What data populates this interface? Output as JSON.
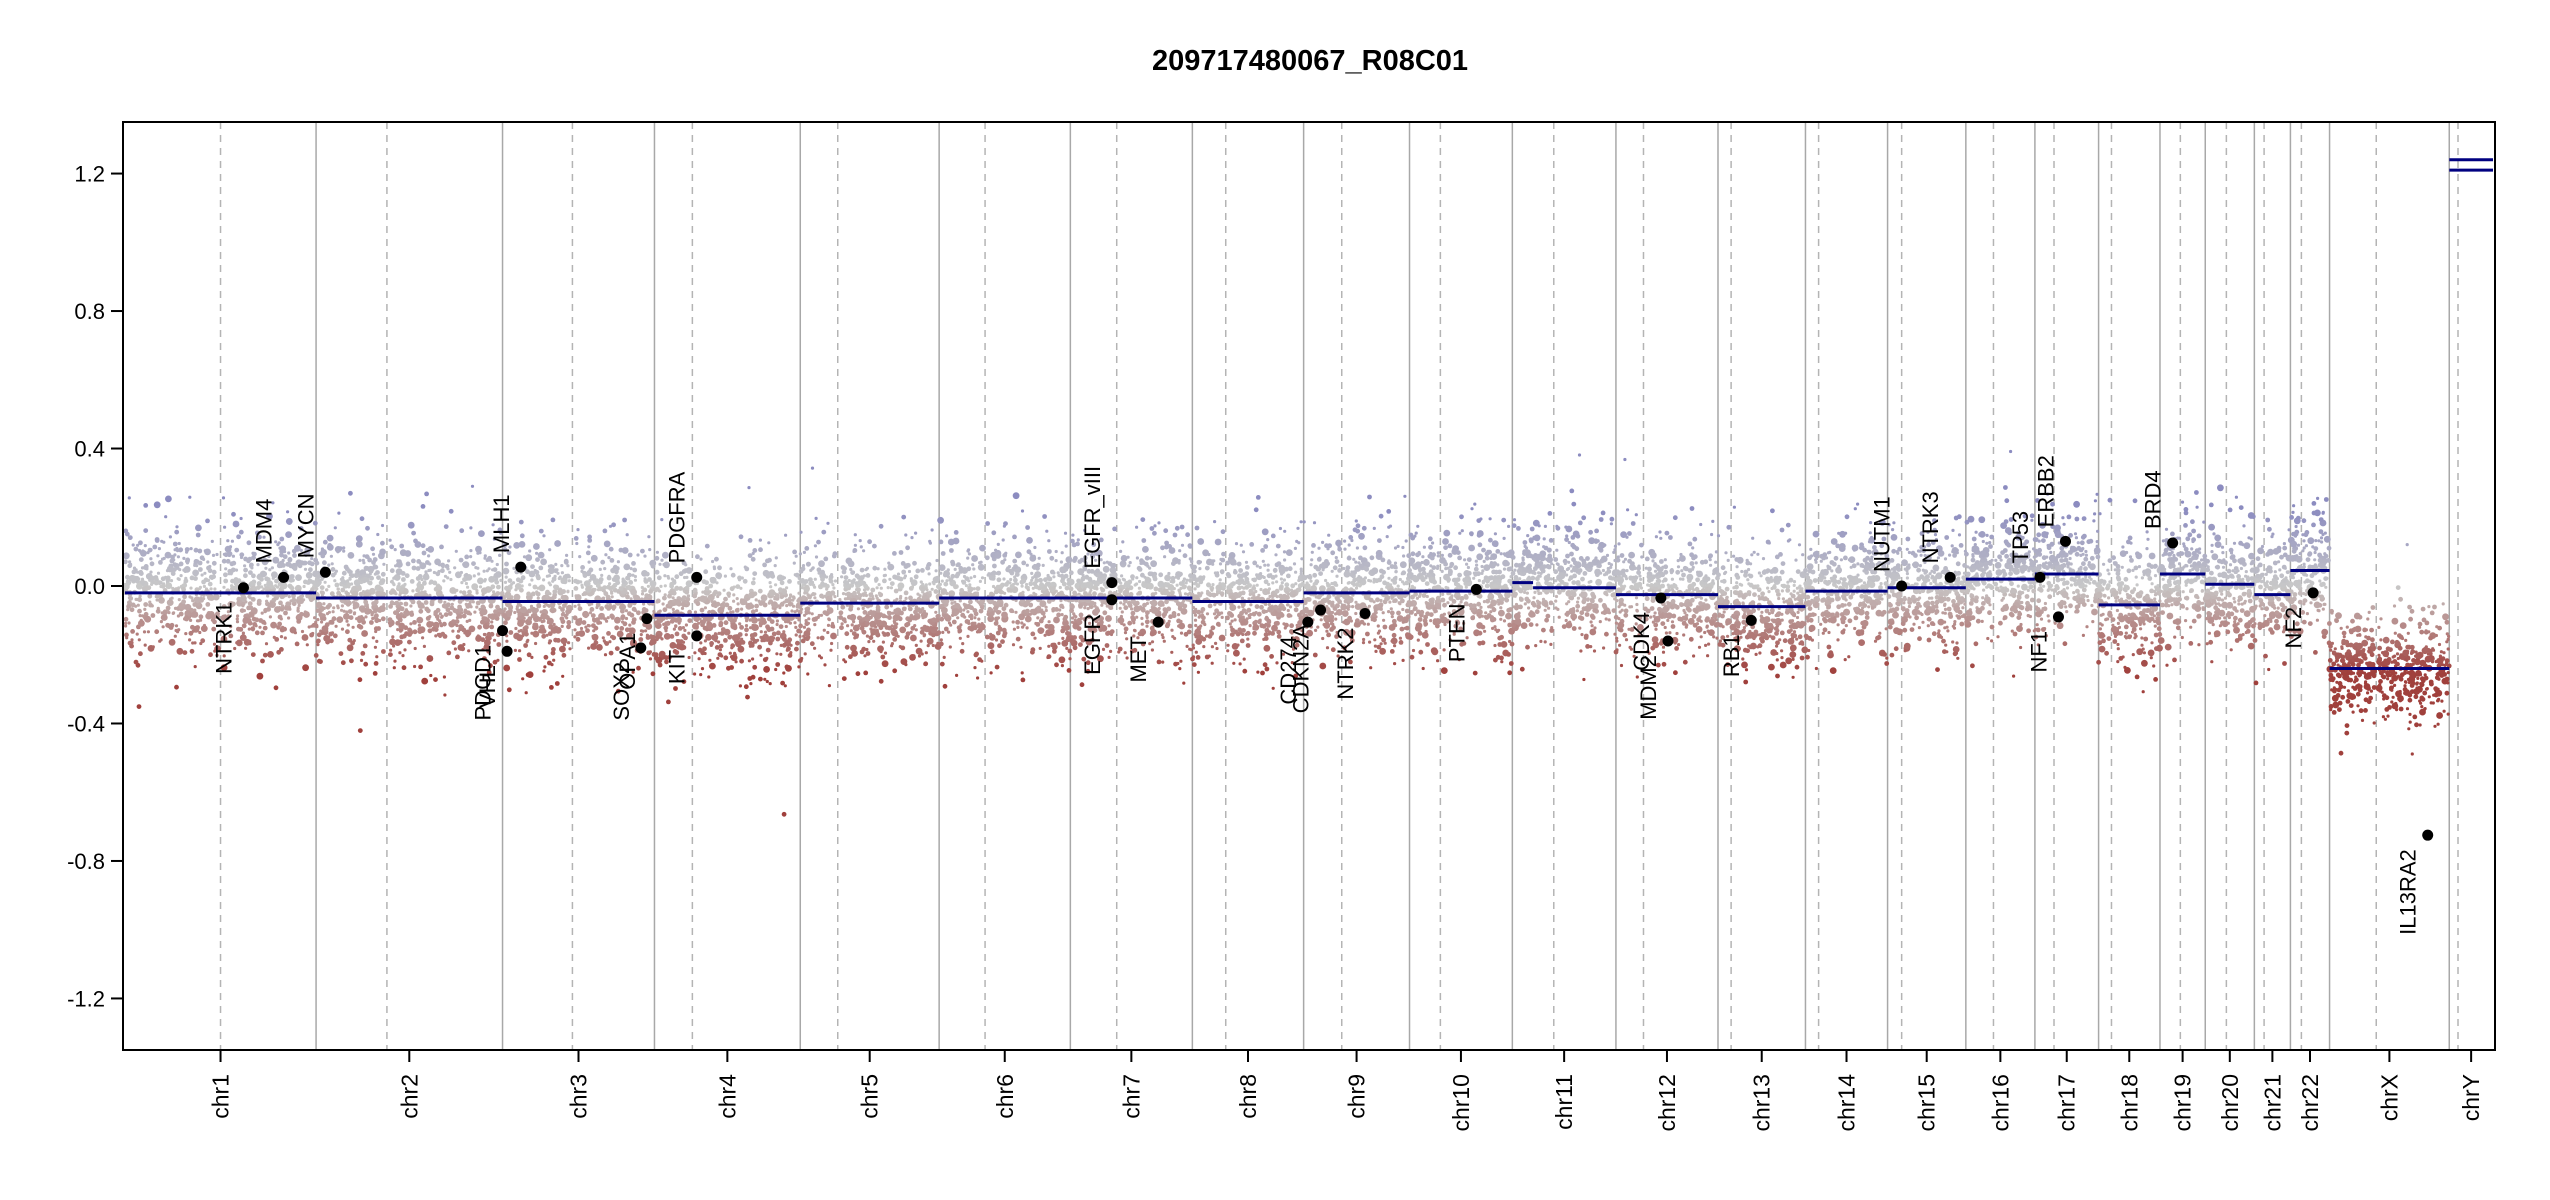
{
  "chart_data": {
    "type": "scatter",
    "title": "209717480067_R08C01",
    "xlabel": "",
    "ylabel": "",
    "ylim": [
      -1.35,
      1.35
    ],
    "y_ticks": [
      -1.2,
      -0.8,
      -0.4,
      0.0,
      0.4,
      0.8,
      1.2
    ],
    "y_tick_labels": [
      "-1.2",
      "-0.8",
      "-0.4",
      "0.0",
      "0.4",
      "0.8",
      "1.2"
    ],
    "colors": {
      "gain": "#8c8cc0",
      "neutral": "#c8c8c8",
      "loss": "#a0403c",
      "segment": "#000080",
      "boundary": "#a8a8a8",
      "centromere": "#b4b4b4",
      "gene_point": "#000000"
    },
    "chromosomes": [
      {
        "name": "chr1",
        "size": 249,
        "centromere": 0.5
      },
      {
        "name": "chr2",
        "size": 243,
        "centromere": 0.38
      },
      {
        "name": "chr3",
        "size": 198,
        "centromere": 0.46
      },
      {
        "name": "chr4",
        "size": 190,
        "centromere": 0.26
      },
      {
        "name": "chr5",
        "size": 181,
        "centromere": 0.27
      },
      {
        "name": "chr6",
        "size": 171,
        "centromere": 0.35
      },
      {
        "name": "chr7",
        "size": 159,
        "centromere": 0.38
      },
      {
        "name": "chr8",
        "size": 145,
        "centromere": 0.3
      },
      {
        "name": "chr9",
        "size": 138,
        "centromere": 0.36
      },
      {
        "name": "chr10",
        "size": 134,
        "centromere": 0.3
      },
      {
        "name": "chr11",
        "size": 135,
        "centromere": 0.4
      },
      {
        "name": "chr12",
        "size": 133,
        "centromere": 0.27
      },
      {
        "name": "chr13",
        "size": 114,
        "centromere": 0.15
      },
      {
        "name": "chr14",
        "size": 107,
        "centromere": 0.16
      },
      {
        "name": "chr15",
        "size": 102,
        "centromere": 0.18
      },
      {
        "name": "chr16",
        "size": 90,
        "centromere": 0.4
      },
      {
        "name": "chr17",
        "size": 83,
        "centromere": 0.3
      },
      {
        "name": "chr18",
        "size": 80,
        "centromere": 0.21
      },
      {
        "name": "chr19",
        "size": 59,
        "centromere": 0.45
      },
      {
        "name": "chr20",
        "size": 64,
        "centromere": 0.43
      },
      {
        "name": "chr21",
        "size": 47,
        "centromere": 0.27
      },
      {
        "name": "chr22",
        "size": 51,
        "centromere": 0.28
      },
      {
        "name": "chrX",
        "size": 156,
        "centromere": 0.39
      },
      {
        "name": "chrY",
        "size": 57,
        "centromere": 0.2
      }
    ],
    "segments": [
      {
        "chr": "chr1",
        "start": 0.0,
        "end": 1.0,
        "value": -0.02
      },
      {
        "chr": "chr2",
        "start": 0.0,
        "end": 1.0,
        "value": -0.035
      },
      {
        "chr": "chr3",
        "start": 0.0,
        "end": 1.0,
        "value": -0.045
      },
      {
        "chr": "chr4",
        "start": 0.0,
        "end": 1.0,
        "value": -0.085
      },
      {
        "chr": "chr5",
        "start": 0.0,
        "end": 1.0,
        "value": -0.05
      },
      {
        "chr": "chr6",
        "start": 0.0,
        "end": 1.0,
        "value": -0.035
      },
      {
        "chr": "chr7",
        "start": 0.0,
        "end": 1.0,
        "value": -0.035
      },
      {
        "chr": "chr8",
        "start": 0.0,
        "end": 1.0,
        "value": -0.045
      },
      {
        "chr": "chr9",
        "start": 0.0,
        "end": 1.0,
        "value": -0.02
      },
      {
        "chr": "chr10",
        "start": 0.0,
        "end": 1.0,
        "value": -0.015
      },
      {
        "chr": "chr11",
        "start": 0.0,
        "end": 0.2,
        "value": 0.01
      },
      {
        "chr": "chr11",
        "start": 0.2,
        "end": 1.0,
        "value": -0.005
      },
      {
        "chr": "chr12",
        "start": 0.0,
        "end": 1.0,
        "value": -0.025
      },
      {
        "chr": "chr13",
        "start": 0.0,
        "end": 1.0,
        "value": -0.06
      },
      {
        "chr": "chr14",
        "start": 0.0,
        "end": 1.0,
        "value": -0.015
      },
      {
        "chr": "chr15",
        "start": 0.0,
        "end": 1.0,
        "value": -0.005
      },
      {
        "chr": "chr16",
        "start": 0.0,
        "end": 1.0,
        "value": 0.02
      },
      {
        "chr": "chr17",
        "start": 0.0,
        "end": 1.0,
        "value": 0.035
      },
      {
        "chr": "chr18",
        "start": 0.0,
        "end": 1.0,
        "value": -0.055
      },
      {
        "chr": "chr19",
        "start": 0.0,
        "end": 1.0,
        "value": 0.035
      },
      {
        "chr": "chr20",
        "start": 0.0,
        "end": 1.0,
        "value": 0.005
      },
      {
        "chr": "chr21",
        "start": 0.0,
        "end": 1.0,
        "value": -0.025
      },
      {
        "chr": "chr22",
        "start": 0.0,
        "end": 1.0,
        "value": 0.045
      },
      {
        "chr": "chrX",
        "start": 0.0,
        "end": 1.0,
        "value": -0.24
      },
      {
        "chr": "chrY",
        "start": 0.0,
        "end": 1.0,
        "value": 1.21
      },
      {
        "chr": "chrY",
        "start": 0.0,
        "end": 1.0,
        "value": 1.24
      }
    ],
    "genes": [
      {
        "name": "NTRK1",
        "chr": "chr1",
        "pos": 0.62,
        "value": -0.005,
        "label_side": "below"
      },
      {
        "name": "MDM4",
        "chr": "chr1",
        "pos": 0.83,
        "value": 0.025,
        "label_side": "above"
      },
      {
        "name": "MYCN",
        "chr": "chr2",
        "pos": 0.05,
        "value": 0.04,
        "label_side": "above"
      },
      {
        "name": "PDGD1",
        "chr": "chr3",
        "pos": 0.0,
        "value": -0.13,
        "label_side": "below"
      },
      {
        "name": "VHL",
        "chr": "chr3",
        "pos": 0.03,
        "value": -0.19,
        "label_side": "below"
      },
      {
        "name": "MLH1",
        "chr": "chr3",
        "pos": 0.12,
        "value": 0.055,
        "label_side": "above"
      },
      {
        "name": "SOX2",
        "chr": "chr3",
        "pos": 0.91,
        "value": -0.18,
        "label_side": "below"
      },
      {
        "name": "OPA1",
        "chr": "chr3",
        "pos": 0.95,
        "value": -0.095,
        "label_side": "below"
      },
      {
        "name": "PDGFRA",
        "chr": "chr4",
        "pos": 0.29,
        "value": 0.025,
        "label_side": "above"
      },
      {
        "name": "KIT",
        "chr": "chr4",
        "pos": 0.29,
        "value": -0.145,
        "label_side": "below"
      },
      {
        "name": "EGFR_vIII",
        "chr": "chr7",
        "pos": 0.34,
        "value": 0.01,
        "label_side": "above"
      },
      {
        "name": "EGFR",
        "chr": "chr7",
        "pos": 0.34,
        "value": -0.04,
        "label_side": "below"
      },
      {
        "name": "MET",
        "chr": "chr7",
        "pos": 0.72,
        "value": -0.105,
        "label_side": "below"
      },
      {
        "name": "CD274",
        "chr": "chr9",
        "pos": 0.04,
        "value": -0.105,
        "label_side": "below"
      },
      {
        "name": "CDKN2A",
        "chr": "chr9",
        "pos": 0.16,
        "value": -0.07,
        "label_side": "below"
      },
      {
        "name": "NTRK2",
        "chr": "chr9",
        "pos": 0.58,
        "value": -0.08,
        "label_side": "below"
      },
      {
        "name": "PTEN",
        "chr": "chr10",
        "pos": 0.65,
        "value": -0.01,
        "label_side": "below"
      },
      {
        "name": "CDK4",
        "chr": "chr12",
        "pos": 0.44,
        "value": -0.035,
        "label_side": "below"
      },
      {
        "name": "MDM2",
        "chr": "chr12",
        "pos": 0.51,
        "value": -0.16,
        "label_side": "below"
      },
      {
        "name": "RB1",
        "chr": "chr13",
        "pos": 0.38,
        "value": -0.1,
        "label_side": "below"
      },
      {
        "name": "NUTM1",
        "chr": "chr15",
        "pos": 0.18,
        "value": 0.0,
        "label_side": "above"
      },
      {
        "name": "NTRK3",
        "chr": "chr15",
        "pos": 0.8,
        "value": 0.025,
        "label_side": "above"
      },
      {
        "name": "TP53",
        "chr": "chr17",
        "pos": 0.08,
        "value": 0.025,
        "label_side": "above"
      },
      {
        "name": "NF1",
        "chr": "chr17",
        "pos": 0.37,
        "value": -0.09,
        "label_side": "below"
      },
      {
        "name": "ERBB2",
        "chr": "chr17",
        "pos": 0.48,
        "value": 0.13,
        "label_side": "above"
      },
      {
        "name": "BRD4",
        "chr": "chr19",
        "pos": 0.28,
        "value": 0.125,
        "label_side": "above"
      },
      {
        "name": "NF2",
        "chr": "chr22",
        "pos": 0.58,
        "value": -0.02,
        "label_side": "below"
      },
      {
        "name": "IL13RA2",
        "chr": "chrX",
        "pos": 0.82,
        "value": -0.725,
        "label_side": "below"
      }
    ]
  }
}
